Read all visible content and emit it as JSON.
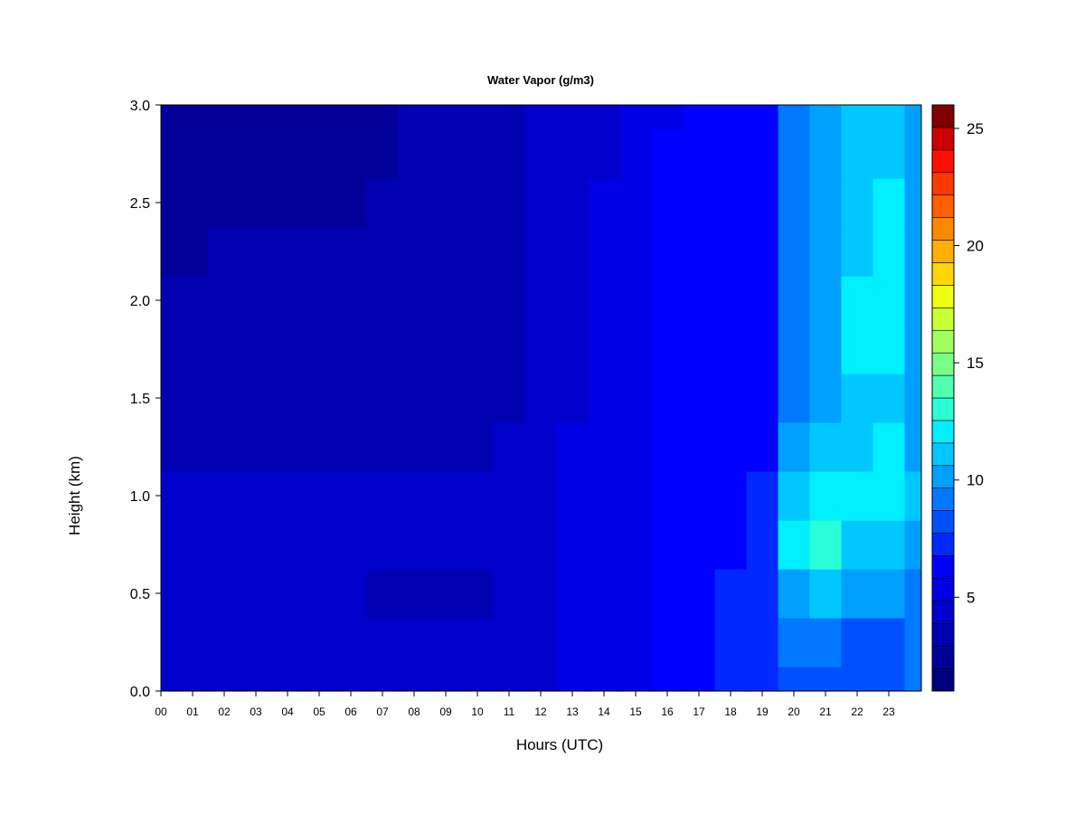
{
  "chart_data": {
    "type": "heatmap",
    "title": "Water Vapor (g/m3)",
    "xlabel": "Hours (UTC)",
    "ylabel": "Height (km)",
    "x_ticks": [
      "00",
      "01",
      "02",
      "03",
      "04",
      "05",
      "06",
      "07",
      "08",
      "09",
      "10",
      "11",
      "12",
      "13",
      "14",
      "15",
      "16",
      "17",
      "18",
      "19",
      "20",
      "21",
      "22",
      "23"
    ],
    "y_ticks": [
      "0.0",
      "0.5",
      "1.0",
      "1.5",
      "2.0",
      "2.5",
      "3.0"
    ],
    "xlim": [
      0,
      24
    ],
    "ylim": [
      0,
      3.0
    ],
    "colorbar": {
      "ticks": [
        "5",
        "10",
        "15",
        "20",
        "25"
      ],
      "tick_values": [
        5,
        10,
        15,
        20,
        25
      ],
      "range": [
        1,
        26
      ],
      "levels": 25,
      "colors": [
        "#00007F",
        "#000099",
        "#0000B3",
        "#0000CC",
        "#0000E6",
        "#0000FF",
        "#0028FF",
        "#0050FF",
        "#0078FF",
        "#00A0FF",
        "#00C8FF",
        "#00F0FF",
        "#28FFD7",
        "#50FFAF",
        "#78FF87",
        "#A0FF5F",
        "#C8FF37",
        "#F0FF0F",
        "#FFD700",
        "#FFAF00",
        "#FF8700",
        "#FF5F00",
        "#FF3700",
        "#FF0F00",
        "#CC0000",
        "#7F0000"
      ]
    },
    "grid": [
      {
        "h": 0.0,
        "v": [
          4,
          4,
          4,
          4,
          4,
          4,
          4,
          4,
          4,
          4,
          4,
          4,
          4,
          5,
          5,
          5,
          6,
          6,
          7,
          7,
          8,
          8,
          8,
          8,
          9
        ]
      },
      {
        "h": 0.25,
        "v": [
          4,
          4,
          4,
          4,
          4,
          4,
          4,
          4,
          4,
          4,
          4,
          4,
          4,
          5,
          5,
          5,
          6,
          6,
          7,
          7,
          9,
          9,
          8,
          8,
          9
        ]
      },
      {
        "h": 0.5,
        "v": [
          4,
          4,
          4,
          4,
          4,
          4,
          4,
          3,
          3,
          3,
          3,
          4,
          4,
          5,
          5,
          5,
          6,
          6,
          7,
          7,
          10,
          11,
          10,
          10,
          9
        ]
      },
      {
        "h": 0.75,
        "v": [
          4,
          4,
          4,
          4,
          4,
          4,
          4,
          4,
          4,
          4,
          4,
          4,
          4,
          5,
          5,
          5,
          6,
          6,
          6,
          7,
          12,
          13,
          11,
          11,
          10
        ]
      },
      {
        "h": 1.0,
        "v": [
          4,
          4,
          4,
          4,
          4,
          4,
          4,
          4,
          4,
          4,
          4,
          4,
          4,
          5,
          5,
          5,
          6,
          6,
          6,
          7,
          11,
          12,
          12,
          12,
          11
        ]
      },
      {
        "h": 1.25,
        "v": [
          3,
          3,
          3,
          3,
          3,
          3,
          3,
          3,
          3,
          3,
          3,
          4,
          4,
          5,
          5,
          5,
          6,
          6,
          6,
          6,
          10,
          11,
          11,
          12,
          10
        ]
      },
      {
        "h": 1.5,
        "v": [
          3,
          3,
          3,
          3,
          3,
          3,
          3,
          3,
          3,
          3,
          3,
          3,
          4,
          4,
          5,
          5,
          6,
          6,
          6,
          6,
          9,
          10,
          11,
          11,
          10
        ]
      },
      {
        "h": 1.75,
        "v": [
          3,
          3,
          3,
          3,
          3,
          3,
          3,
          3,
          3,
          3,
          3,
          3,
          4,
          4,
          5,
          5,
          6,
          6,
          6,
          6,
          9,
          10,
          12,
          12,
          10
        ]
      },
      {
        "h": 2.0,
        "v": [
          3,
          3,
          3,
          3,
          3,
          3,
          3,
          3,
          3,
          3,
          3,
          3,
          4,
          4,
          5,
          5,
          6,
          6,
          6,
          6,
          9,
          10,
          12,
          12,
          10
        ]
      },
      {
        "h": 2.25,
        "v": [
          2,
          2,
          3,
          3,
          3,
          3,
          3,
          3,
          3,
          3,
          3,
          3,
          4,
          4,
          5,
          5,
          6,
          6,
          6,
          6,
          9,
          10,
          11,
          12,
          10
        ]
      },
      {
        "h": 2.5,
        "v": [
          2,
          2,
          2,
          2,
          2,
          2,
          2,
          3,
          3,
          3,
          3,
          3,
          4,
          4,
          5,
          5,
          6,
          6,
          6,
          6,
          9,
          10,
          11,
          12,
          10
        ]
      },
      {
        "h": 2.75,
        "v": [
          2,
          2,
          2,
          2,
          2,
          2,
          2,
          2,
          3,
          3,
          3,
          3,
          4,
          4,
          4,
          5,
          6,
          6,
          6,
          6,
          9,
          10,
          11,
          11,
          10
        ]
      },
      {
        "h": 3.0,
        "v": [
          2,
          2,
          2,
          2,
          2,
          2,
          2,
          2,
          3,
          3,
          3,
          3,
          4,
          4,
          4,
          5,
          5,
          6,
          6,
          6,
          9,
          10,
          11,
          11,
          10
        ]
      }
    ]
  }
}
